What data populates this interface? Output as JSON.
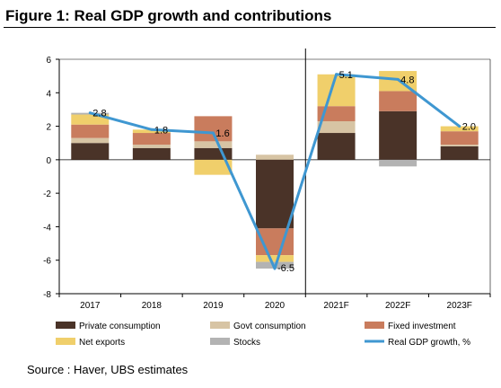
{
  "title": "Figure 1: Real GDP growth and contributions",
  "source": "Source : Haver, UBS estimates",
  "chart_data": {
    "type": "bar",
    "stacked": true,
    "categories": [
      "2017",
      "2018",
      "2019",
      "2020",
      "2021F",
      "2022F",
      "2023F"
    ],
    "ylim": [
      -8,
      6
    ],
    "yticks": [
      6,
      4,
      2,
      0,
      -2,
      -4,
      -6,
      -8
    ],
    "grid": false,
    "legend_position": "bottom",
    "forecast_divider_after": "2020",
    "series": [
      {
        "name": "Private consumption",
        "color": "#4a3328",
        "values": [
          1.0,
          0.7,
          0.7,
          -4.1,
          1.6,
          2.9,
          0.8
        ]
      },
      {
        "name": "Govt consumption",
        "color": "#d7c4a4",
        "values": [
          0.3,
          0.2,
          0.4,
          0.3,
          0.7,
          0.0,
          0.1
        ]
      },
      {
        "name": "Fixed investment",
        "color": "#c97c5d",
        "values": [
          0.8,
          0.7,
          1.5,
          -1.6,
          0.9,
          1.2,
          0.8
        ]
      },
      {
        "name": "Net exports",
        "color": "#f0cf6b",
        "values": [
          0.6,
          0.2,
          -0.9,
          -0.4,
          1.9,
          1.2,
          0.3
        ]
      },
      {
        "name": "Stocks",
        "color": "#b3b3b3",
        "values": [
          0.1,
          0.0,
          0.0,
          -0.4,
          0.0,
          -0.4,
          0.0
        ]
      }
    ],
    "line": {
      "name": "Real GDP growth, %",
      "color": "#3f97d1",
      "values": [
        2.8,
        1.8,
        1.6,
        -6.5,
        5.1,
        4.8,
        2.0
      ],
      "labels": [
        "2.8",
        "1.8",
        "1.6",
        "-6.5",
        "5.1",
        "4.8",
        "2.0"
      ]
    }
  }
}
